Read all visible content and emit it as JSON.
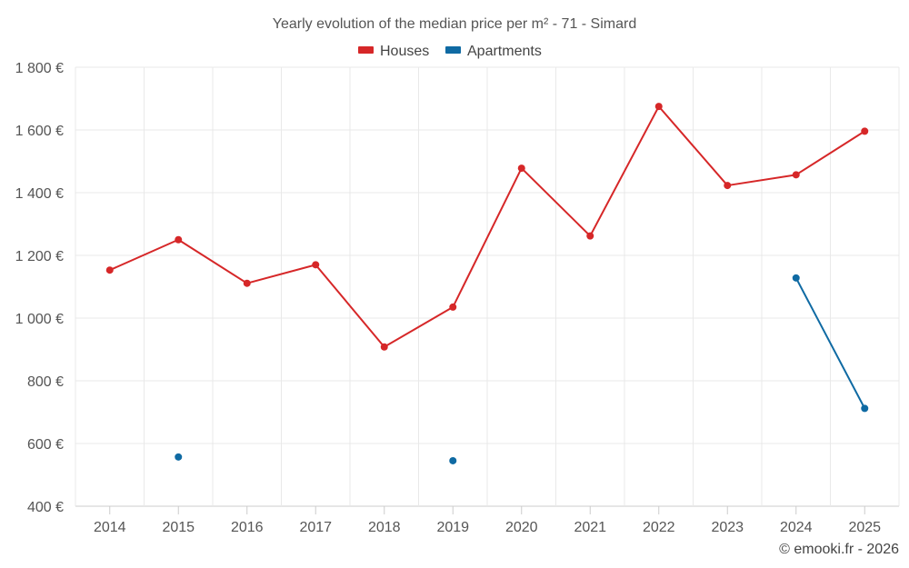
{
  "chart_data": {
    "type": "line",
    "title": "Yearly evolution of the median price per m² - 71 - Simard",
    "categories": [
      "2014",
      "2015",
      "2016",
      "2017",
      "2018",
      "2019",
      "2020",
      "2021",
      "2022",
      "2023",
      "2024",
      "2025"
    ],
    "series": [
      {
        "name": "Houses",
        "color": "#d62728",
        "values": [
          1153,
          1250,
          1111,
          1170,
          908,
          1035,
          1478,
          1262,
          1675,
          1423,
          1457,
          1596
        ]
      },
      {
        "name": "Apartments",
        "color": "#0f6aa3",
        "values": [
          null,
          557,
          null,
          null,
          null,
          545,
          null,
          null,
          null,
          null,
          1128,
          712
        ]
      }
    ],
    "ylim": [
      400,
      1800
    ],
    "yticks": [
      400,
      600,
      800,
      1000,
      1200,
      1400,
      1600,
      1800
    ],
    "ytick_labels": [
      "400 €",
      "600 €",
      "800 €",
      "1 000 €",
      "1 200 €",
      "1 400 €",
      "1 600 €",
      "1 800 €"
    ],
    "xlabel": "",
    "ylabel": "",
    "grid": true,
    "legend_position": "top-center"
  },
  "credit": "© emooki.fr - 2026"
}
